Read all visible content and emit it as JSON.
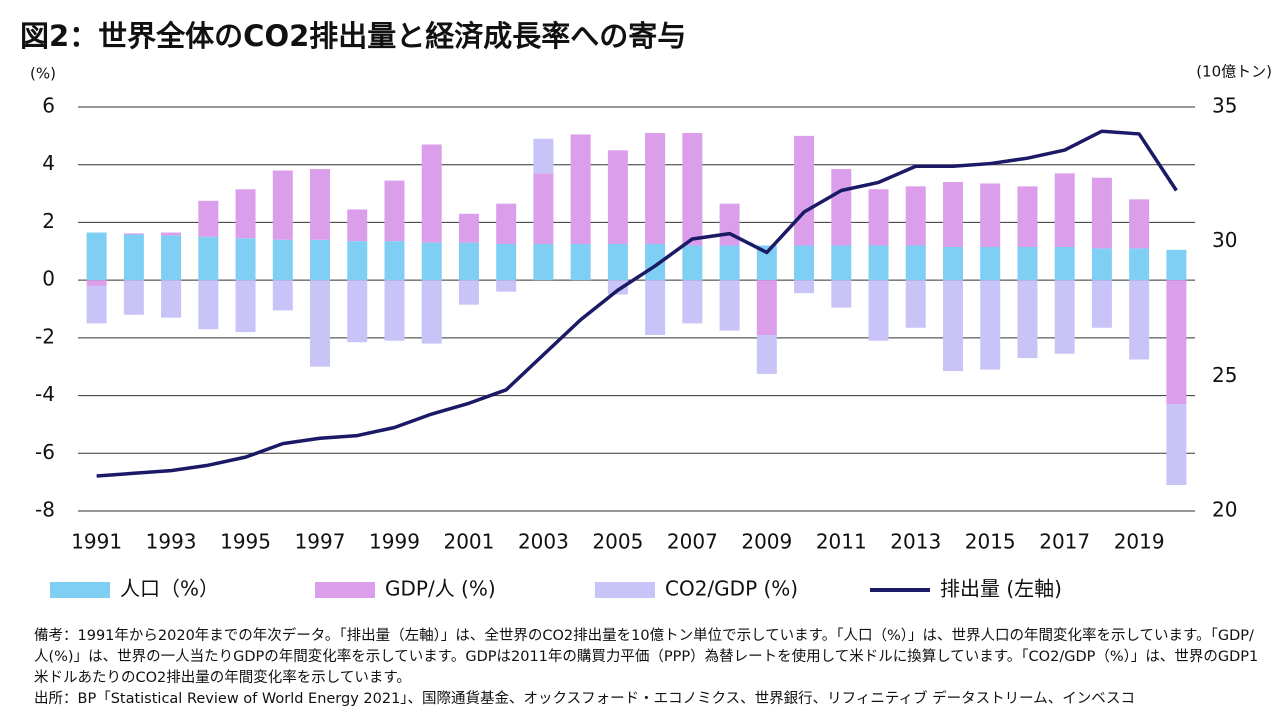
{
  "chart_data": {
    "type": "bar",
    "title": "図2：世界全体のCO2排出量と経済成長率への寄与",
    "y_label": "(%)",
    "y2_label": "(10億トン)",
    "categories": [
      "1991",
      null,
      "1993",
      null,
      "1995",
      null,
      "1997",
      null,
      "1999",
      null,
      "2001",
      null,
      "2003",
      null,
      "2005",
      null,
      "2007",
      null,
      "2009",
      null,
      "2011",
      null,
      "2013",
      null,
      "2015",
      null,
      "2017",
      null,
      "2019",
      null
    ],
    "series": [
      {
        "name": "人口（%）",
        "type": "bar",
        "color": "#7fcff4",
        "values": [
          1.65,
          1.58,
          1.55,
          1.5,
          1.45,
          1.4,
          1.4,
          1.35,
          1.35,
          1.3,
          1.3,
          1.25,
          1.25,
          1.25,
          1.25,
          1.25,
          1.2,
          1.2,
          1.2,
          1.2,
          1.2,
          1.2,
          1.2,
          1.15,
          1.15,
          1.15,
          1.15,
          1.1,
          1.1,
          1.05
        ]
      },
      {
        "name": "GDP/人 (%)",
        "type": "bar",
        "color": "#da9eea",
        "values": [
          -0.2,
          0.04,
          0.1,
          1.25,
          1.7,
          2.4,
          2.45,
          1.1,
          2.1,
          3.4,
          1.0,
          1.4,
          2.45,
          3.8,
          3.25,
          3.85,
          3.9,
          1.45,
          -1.9,
          3.8,
          2.65,
          1.95,
          2.05,
          2.25,
          2.2,
          2.1,
          2.55,
          2.45,
          1.7,
          -4.3
        ]
      },
      {
        "name": "CO2/GDP (%)",
        "type": "bar",
        "color": "#c9c4f8",
        "values": [
          -1.3,
          -1.2,
          -1.3,
          -1.7,
          -1.8,
          -1.05,
          -3.0,
          -2.15,
          -2.1,
          -2.2,
          -0.85,
          -0.4,
          1.2,
          0,
          -0.5,
          -1.9,
          -1.5,
          -1.75,
          -1.35,
          -0.45,
          -0.95,
          -2.1,
          -1.65,
          -3.15,
          -3.1,
          -2.7,
          -2.55,
          -1.65,
          -2.75,
          -2.8
        ]
      },
      {
        "name": "排出量 (左軸)",
        "type": "line",
        "axis": "y2",
        "color": "#1a1a66",
        "values": [
          21.3,
          21.4,
          21.5,
          21.7,
          22.0,
          22.5,
          22.7,
          22.8,
          23.1,
          23.6,
          24.0,
          24.5,
          25.8,
          27.1,
          28.2,
          29.1,
          30.1,
          30.3,
          29.6,
          31.1,
          31.9,
          32.2,
          32.8,
          32.8,
          32.9,
          33.1,
          33.4,
          34.1,
          34.0,
          31.9
        ]
      }
    ],
    "ylim": [
      -8,
      6
    ],
    "yticks": [
      -8,
      -6,
      -4,
      -2,
      0,
      2,
      4,
      6
    ],
    "y2lim": [
      20,
      35
    ],
    "y2ticks": [
      20,
      25,
      30,
      35
    ],
    "grid": true,
    "legend": "bottom",
    "note": "備考：1991年から2020年までの年次データ。「排出量（左軸）」は、全世界のCO2排出量を10億トン単位で示しています。「人口（%）」は、世界人口の年間変化率を示しています。「GDP/人(%)」は、世界の一人当たりGDPの年間変化率を示しています。GDPは2011年の購買力平価（PPP）為替レートを使用して米ドルに換算しています。「CO2/GDP（%）」は、世界のGDP1米ドルあたりのCO2排出量の年間変化率を示しています。",
    "source": "出所：BP「Statistical Review of World Energy 2021」、国際通貨基金、オックスフォード・エコノミクス、世界銀行、リフィニティブ データストリーム、インベスコ"
  }
}
